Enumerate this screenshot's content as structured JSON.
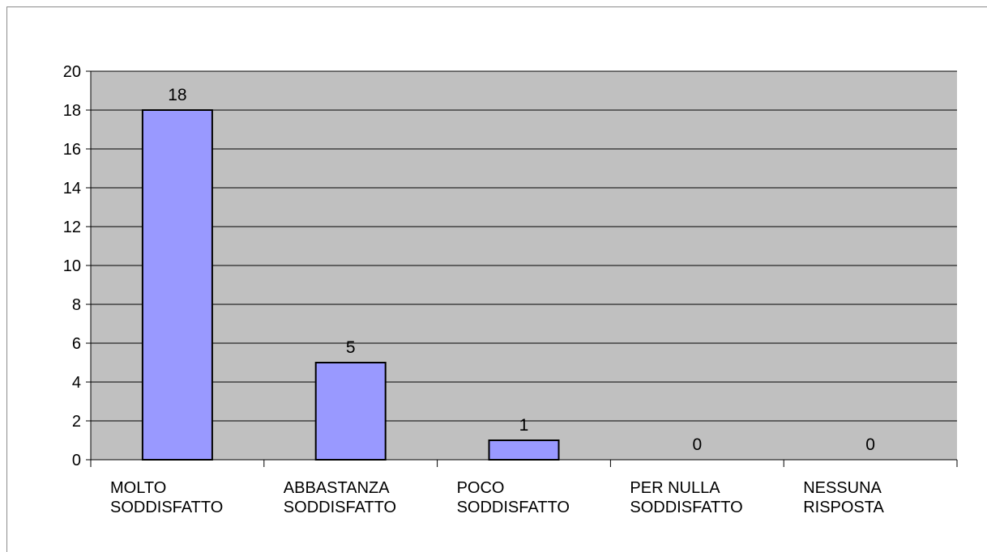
{
  "chart_data": {
    "type": "bar",
    "title": "",
    "xlabel": "",
    "ylabel": "",
    "categories": [
      [
        "MOLTO",
        "SODDISFATTO"
      ],
      [
        "ABBASTANZA",
        "SODDISFATTO"
      ],
      [
        "POCO",
        "SODDISFATTO"
      ],
      [
        "PER NULLA",
        "SODDISFATTO"
      ],
      [
        "NESSUNA",
        "RISPOSTA"
      ]
    ],
    "values": [
      18,
      5,
      1,
      0,
      0
    ],
    "data_labels": [
      "18",
      "5",
      "1",
      "0",
      "0"
    ],
    "ylim": [
      0,
      20
    ],
    "yticks": [
      0,
      2,
      4,
      6,
      8,
      10,
      12,
      14,
      16,
      18,
      20
    ],
    "grid": true,
    "legend": "none",
    "colors": {
      "bar_fill": "#9999ff",
      "bar_stroke": "#000000",
      "plot_background": "#c0c0c0",
      "grid": "#000000"
    }
  }
}
